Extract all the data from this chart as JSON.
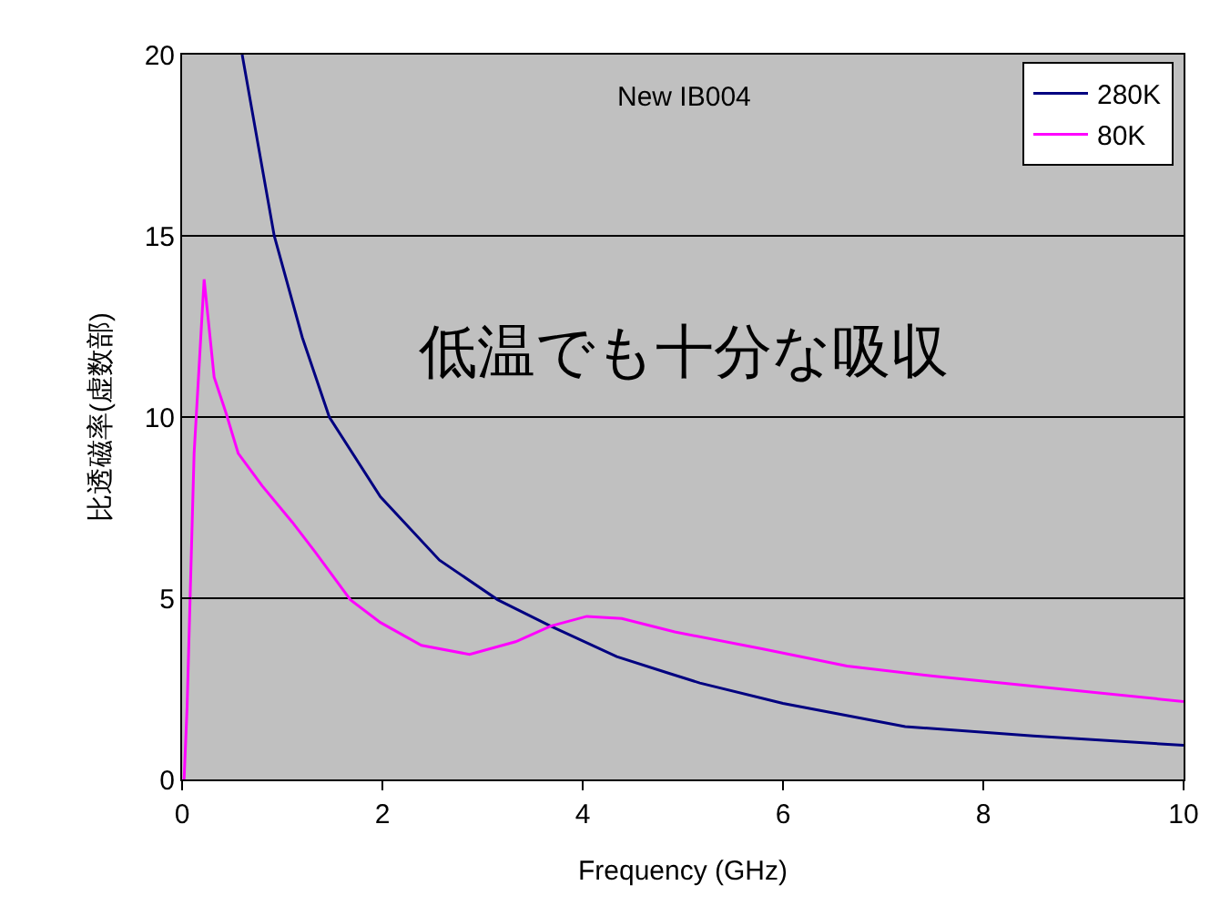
{
  "chart_data": {
    "type": "line",
    "xlabel": "Frequency (GHz)",
    "ylabel": "比透磁率(虚数部)",
    "annotations": [
      "New IB004",
      "低温でも十分な吸収"
    ],
    "xlim": [
      0,
      10
    ],
    "xticks": [
      0,
      2,
      4,
      6,
      8,
      10
    ],
    "ylim": [
      0,
      20
    ],
    "yticks": [
      0,
      5,
      10,
      15,
      20
    ],
    "grid": "y",
    "legend": "top right",
    "line_style": "solid",
    "marker": "none",
    "series": [
      {
        "name": "280K",
        "color": "#000080",
        "x": [
          0.6,
          0.92,
          1.2,
          1.47,
          1.98,
          2.57,
          3.15,
          3.68,
          4.34,
          4.87,
          5.17,
          6.0,
          7.22,
          8.5,
          10
        ],
        "values": [
          20,
          15,
          12.2,
          10,
          7.8,
          6.05,
          4.96,
          4.23,
          3.39,
          2.92,
          2.66,
          2.1,
          1.46,
          1.2,
          0.94
        ]
      },
      {
        "name": "80K",
        "color": "#ff00ff",
        "x": [
          0.02,
          0.05,
          0.12,
          0.22,
          0.32,
          0.44,
          0.56,
          0.8,
          1.1,
          1.33,
          1.68,
          1.98,
          2.39,
          2.87,
          3.33,
          3.68,
          4.04,
          4.39,
          4.92,
          5.8,
          6.64,
          7.5,
          8.4,
          10
        ],
        "values": [
          0,
          2,
          9,
          13.8,
          11.1,
          10.1,
          9.0,
          8.1,
          7.1,
          6.27,
          4.96,
          4.33,
          3.7,
          3.45,
          3.8,
          4.23,
          4.5,
          4.44,
          4.07,
          3.6,
          3.13,
          2.85,
          2.6,
          2.15
        ]
      }
    ]
  }
}
